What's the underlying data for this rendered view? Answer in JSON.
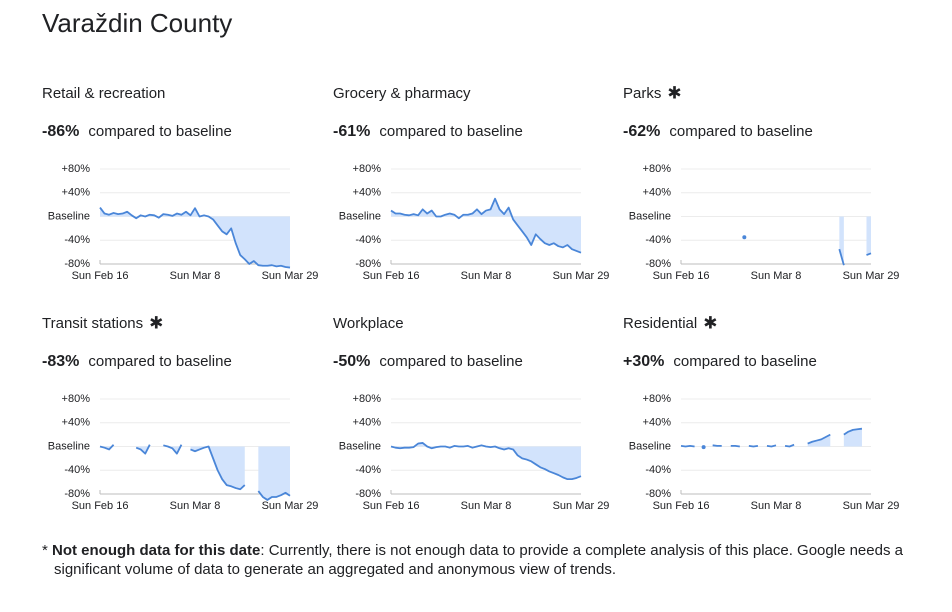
{
  "title": "Varaždin County",
  "chart_data": [
    {
      "type": "line",
      "title": "Retail & recreation",
      "summary": {
        "value": -86,
        "label": "-86%"
      },
      "summary_text": "compared to baseline",
      "categories": [
        "Sun Feb 16",
        null,
        null,
        null,
        null,
        null,
        null,
        null,
        null,
        null,
        null,
        null,
        null,
        null,
        null,
        null,
        null,
        null,
        null,
        null,
        null,
        "Sun Mar 8",
        null,
        null,
        null,
        null,
        null,
        null,
        null,
        null,
        null,
        null,
        null,
        null,
        null,
        null,
        null,
        null,
        null,
        null,
        null,
        null,
        "Sun Mar 29"
      ],
      "values": [
        15,
        5,
        3,
        6,
        4,
        5,
        8,
        2,
        -3,
        2,
        0,
        3,
        2,
        -2,
        4,
        3,
        1,
        5,
        3,
        8,
        2,
        14,
        0,
        2,
        0,
        -5,
        -15,
        -25,
        -30,
        -20,
        -45,
        -65,
        -72,
        -80,
        -75,
        -82,
        -83,
        -83,
        -82,
        -84,
        -83,
        -85,
        -86
      ],
      "color": "#4a86d8",
      "area_color": "#d2e3fc",
      "ylim": [
        -80,
        80
      ],
      "yticks": [
        {
          "value": 80,
          "label": "+80%"
        },
        {
          "value": 40,
          "label": "+40%"
        },
        {
          "value": 0,
          "label": "Baseline"
        },
        {
          "value": -40,
          "label": "-40%"
        },
        {
          "value": -80,
          "label": "-80%"
        }
      ],
      "grid": true
    },
    {
      "type": "line",
      "title": "Grocery & pharmacy",
      "summary": {
        "value": -61,
        "label": "-61%"
      },
      "summary_text": "compared to baseline",
      "categories": [
        "Sun Feb 16",
        null,
        null,
        null,
        null,
        null,
        null,
        null,
        null,
        null,
        null,
        null,
        null,
        null,
        null,
        null,
        null,
        null,
        null,
        null,
        null,
        "Sun Mar 8",
        null,
        null,
        null,
        null,
        null,
        null,
        null,
        null,
        null,
        null,
        null,
        null,
        null,
        null,
        null,
        null,
        null,
        null,
        null,
        null,
        "Sun Mar 29"
      ],
      "values": [
        10,
        5,
        5,
        3,
        2,
        4,
        2,
        12,
        5,
        10,
        0,
        0,
        3,
        5,
        3,
        -3,
        3,
        3,
        5,
        12,
        4,
        10,
        12,
        30,
        12,
        4,
        15,
        -5,
        -15,
        -25,
        -35,
        -48,
        -30,
        -38,
        -45,
        -48,
        -45,
        -50,
        -52,
        -48,
        -55,
        -58,
        -61
      ],
      "color": "#4a86d8",
      "area_color": "#d2e3fc",
      "ylim": [
        -80,
        80
      ],
      "yticks": [
        {
          "value": 80,
          "label": "+80%"
        },
        {
          "value": 40,
          "label": "+40%"
        },
        {
          "value": 0,
          "label": "Baseline"
        },
        {
          "value": -40,
          "label": "-40%"
        },
        {
          "value": -80,
          "label": "-80%"
        }
      ],
      "grid": true
    },
    {
      "type": "line",
      "title": "Parks",
      "flag": "✱",
      "summary": {
        "value": -62,
        "label": "-62%"
      },
      "summary_text": "compared to baseline",
      "categories": [
        "Sun Feb 16",
        null,
        null,
        null,
        null,
        null,
        null,
        null,
        null,
        null,
        null,
        null,
        null,
        null,
        null,
        null,
        null,
        null,
        null,
        null,
        null,
        "Sun Mar 8",
        null,
        null,
        null,
        null,
        null,
        null,
        null,
        null,
        null,
        null,
        null,
        null,
        null,
        null,
        null,
        null,
        null,
        null,
        null,
        null,
        "Sun Mar 29"
      ],
      "values": [
        null,
        null,
        null,
        null,
        null,
        null,
        null,
        null,
        null,
        null,
        null,
        null,
        null,
        null,
        -35,
        null,
        null,
        null,
        null,
        null,
        null,
        null,
        null,
        null,
        null,
        null,
        null,
        null,
        null,
        null,
        null,
        null,
        null,
        null,
        null,
        -55,
        -82,
        null,
        null,
        null,
        null,
        -65,
        -62
      ],
      "color": "#4a86d8",
      "area_color": "#d2e3fc",
      "ylim": [
        -80,
        80
      ],
      "yticks": [
        {
          "value": 80,
          "label": "+80%"
        },
        {
          "value": 40,
          "label": "+40%"
        },
        {
          "value": 0,
          "label": "Baseline"
        },
        {
          "value": -40,
          "label": "-40%"
        },
        {
          "value": -80,
          "label": "-80%"
        }
      ],
      "grid": true
    },
    {
      "type": "line",
      "title": "Transit stations",
      "flag": "✱",
      "summary": {
        "value": -83,
        "label": "-83%"
      },
      "summary_text": "compared to baseline",
      "categories": [
        "Sun Feb 16",
        null,
        null,
        null,
        null,
        null,
        null,
        null,
        null,
        null,
        null,
        null,
        null,
        null,
        null,
        null,
        null,
        null,
        null,
        null,
        null,
        "Sun Mar 8",
        null,
        null,
        null,
        null,
        null,
        null,
        null,
        null,
        null,
        null,
        null,
        null,
        null,
        null,
        null,
        null,
        null,
        null,
        null,
        null,
        "Sun Mar 29"
      ],
      "values": [
        0,
        -2,
        -5,
        3,
        null,
        null,
        null,
        null,
        -2,
        -5,
        -12,
        3,
        null,
        null,
        2,
        0,
        -3,
        -12,
        3,
        null,
        -5,
        -8,
        -5,
        -2,
        0,
        -20,
        -40,
        -55,
        -65,
        -67,
        -70,
        -72,
        -65,
        null,
        null,
        -75,
        -85,
        -90,
        -85,
        -85,
        -82,
        -78,
        -83
      ],
      "color": "#4a86d8",
      "area_color": "#d2e3fc",
      "ylim": [
        -80,
        80
      ],
      "yticks": [
        {
          "value": 80,
          "label": "+80%"
        },
        {
          "value": 40,
          "label": "+40%"
        },
        {
          "value": 0,
          "label": "Baseline"
        },
        {
          "value": -40,
          "label": "-40%"
        },
        {
          "value": -80,
          "label": "-80%"
        }
      ],
      "grid": true
    },
    {
      "type": "line",
      "title": "Workplace",
      "summary": {
        "value": -50,
        "label": "-50%"
      },
      "summary_text": "compared to baseline",
      "categories": [
        "Sun Feb 16",
        null,
        null,
        null,
        null,
        null,
        null,
        null,
        null,
        null,
        null,
        null,
        null,
        null,
        null,
        null,
        null,
        null,
        null,
        null,
        null,
        "Sun Mar 8",
        null,
        null,
        null,
        null,
        null,
        null,
        null,
        null,
        null,
        null,
        null,
        null,
        null,
        null,
        null,
        null,
        null,
        null,
        null,
        null,
        "Sun Mar 29"
      ],
      "values": [
        0,
        -2,
        -3,
        -2,
        -2,
        -1,
        5,
        6,
        0,
        -3,
        -1,
        0,
        0,
        -2,
        1,
        0,
        0,
        1,
        -2,
        0,
        2,
        0,
        -1,
        0,
        -3,
        -5,
        -3,
        -5,
        -15,
        -20,
        -22,
        -25,
        -30,
        -35,
        -38,
        -42,
        -45,
        -48,
        -52,
        -55,
        -55,
        -53,
        -50
      ],
      "color": "#4a86d8",
      "area_color": "#d2e3fc",
      "ylim": [
        -80,
        80
      ],
      "yticks": [
        {
          "value": 80,
          "label": "+80%"
        },
        {
          "value": 40,
          "label": "+40%"
        },
        {
          "value": 0,
          "label": "Baseline"
        },
        {
          "value": -40,
          "label": "-40%"
        },
        {
          "value": -80,
          "label": "-80%"
        }
      ],
      "grid": true
    },
    {
      "type": "line",
      "title": "Residential",
      "flag": "✱",
      "summary": {
        "value": 30,
        "label": "+30%"
      },
      "summary_text": "compared to baseline",
      "categories": [
        "Sun Feb 16",
        null,
        null,
        null,
        null,
        null,
        null,
        null,
        null,
        null,
        null,
        null,
        null,
        null,
        null,
        null,
        null,
        null,
        null,
        null,
        null,
        "Sun Mar 8",
        null,
        null,
        null,
        null,
        null,
        null,
        null,
        null,
        null,
        null,
        null,
        null,
        null,
        null,
        null,
        null,
        null,
        null,
        null,
        null,
        "Sun Mar 29"
      ],
      "values": [
        1,
        0,
        1,
        0,
        null,
        -1,
        null,
        2,
        1,
        1,
        null,
        1,
        1,
        0,
        null,
        1,
        0,
        1,
        null,
        1,
        0,
        2,
        null,
        1,
        0,
        3,
        null,
        null,
        5,
        8,
        10,
        12,
        16,
        20,
        null,
        null,
        20,
        25,
        28,
        29,
        30,
        null,
        null
      ],
      "color": "#4a86d8",
      "area_color": "#d2e3fc",
      "ylim": [
        -80,
        80
      ],
      "yticks": [
        {
          "value": 80,
          "label": "+80%"
        },
        {
          "value": 40,
          "label": "+40%"
        },
        {
          "value": 0,
          "label": "Baseline"
        },
        {
          "value": -40,
          "label": "-40%"
        },
        {
          "value": -80,
          "label": "-80%"
        }
      ],
      "grid": true
    }
  ],
  "footnote": {
    "symbol": "*",
    "term": "Not enough data for this date",
    "text": ": Currently, there is not enough data to provide a complete analysis of this place. Google needs a significant volume of data to generate an aggregated and anonymous view of trends."
  }
}
